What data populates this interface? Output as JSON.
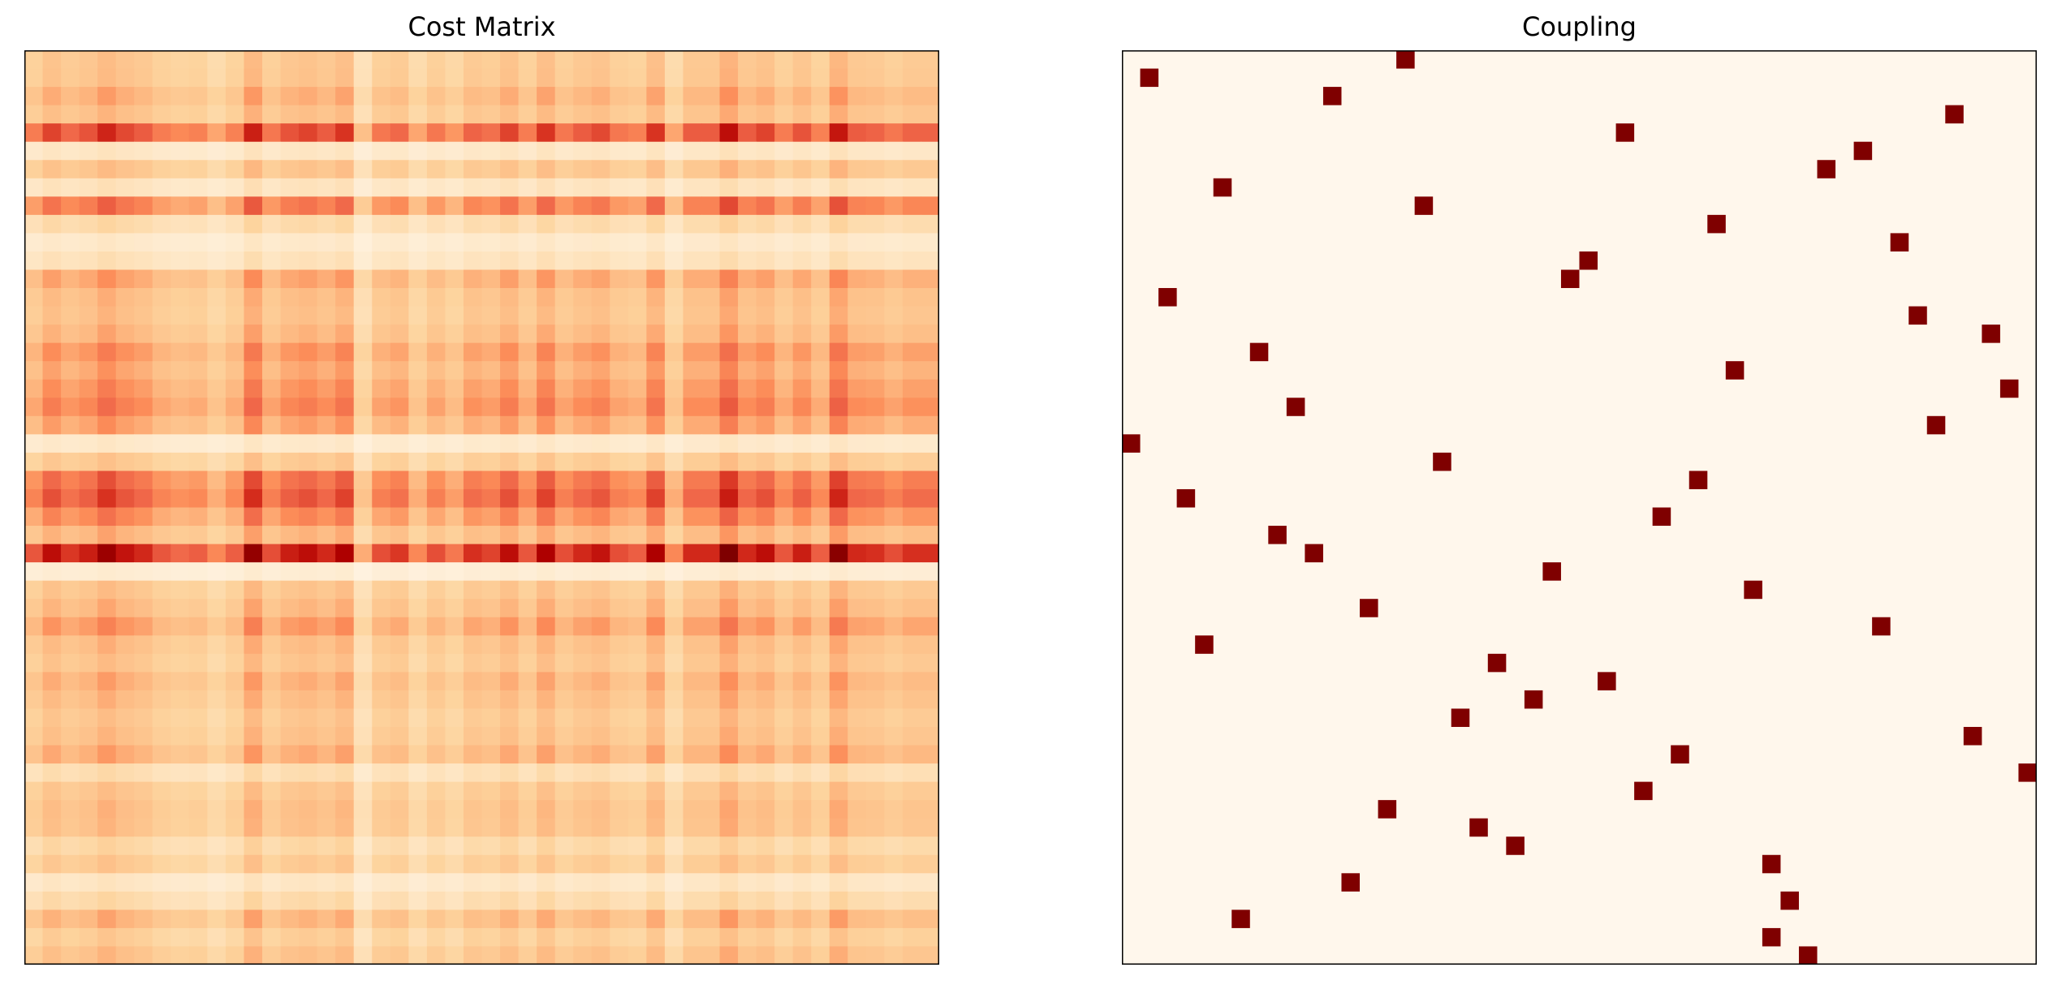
{
  "figure": {
    "panels": [
      {
        "title": "Cost Matrix"
      },
      {
        "title": "Coupling"
      }
    ]
  },
  "chart_data": [
    {
      "type": "heatmap",
      "title": "Cost Matrix",
      "colormap": "OrRd",
      "rows": 50,
      "cols": 50,
      "row_factors": [
        0.32,
        0.33,
        0.42,
        0.35,
        0.78,
        0.12,
        0.33,
        0.14,
        0.62,
        0.2,
        0.1,
        0.15,
        0.46,
        0.37,
        0.35,
        0.4,
        0.52,
        0.45,
        0.52,
        0.58,
        0.47,
        0.1,
        0.3,
        0.66,
        0.74,
        0.56,
        0.4,
        0.96,
        0.07,
        0.33,
        0.39,
        0.5,
        0.37,
        0.33,
        0.42,
        0.37,
        0.32,
        0.35,
        0.43,
        0.18,
        0.32,
        0.36,
        0.35,
        0.22,
        0.3,
        0.12,
        0.2,
        0.4,
        0.28,
        0.35
      ],
      "col_factors": [
        0.6,
        0.8,
        0.68,
        0.75,
        0.9,
        0.78,
        0.72,
        0.6,
        0.55,
        0.58,
        0.45,
        0.58,
        0.92,
        0.62,
        0.75,
        0.8,
        0.72,
        0.85,
        0.35,
        0.62,
        0.68,
        0.45,
        0.62,
        0.5,
        0.7,
        0.65,
        0.8,
        0.6,
        0.85,
        0.62,
        0.72,
        0.78,
        0.62,
        0.58,
        0.85,
        0.45,
        0.72,
        0.72,
        0.98,
        0.72,
        0.8,
        0.6,
        0.75,
        0.58,
        0.95,
        0.72,
        0.7,
        0.62,
        0.7,
        0.7
      ],
      "colors": {
        "low": "#fff7ec",
        "high": "#7f0000"
      }
    },
    {
      "type": "heatmap",
      "title": "Coupling",
      "colormap": "OrRd",
      "rows": 50,
      "cols": 50,
      "nonzero_cells": [
        [
          0,
          15
        ],
        [
          1,
          1
        ],
        [
          2,
          11
        ],
        [
          3,
          45
        ],
        [
          4,
          27
        ],
        [
          5,
          40
        ],
        [
          6,
          38
        ],
        [
          7,
          5
        ],
        [
          8,
          16
        ],
        [
          9,
          32
        ],
        [
          10,
          42
        ],
        [
          11,
          25
        ],
        [
          12,
          24
        ],
        [
          13,
          2
        ],
        [
          14,
          43
        ],
        [
          15,
          47
        ],
        [
          16,
          7
        ],
        [
          17,
          33
        ],
        [
          18,
          48
        ],
        [
          19,
          9
        ],
        [
          20,
          44
        ],
        [
          21,
          0
        ],
        [
          22,
          17
        ],
        [
          23,
          31
        ],
        [
          24,
          3
        ],
        [
          25,
          29
        ],
        [
          26,
          8
        ],
        [
          27,
          10
        ],
        [
          28,
          23
        ],
        [
          29,
          34
        ],
        [
          30,
          13
        ],
        [
          31,
          41
        ],
        [
          32,
          4
        ],
        [
          33,
          20
        ],
        [
          34,
          26
        ],
        [
          35,
          22
        ],
        [
          36,
          18
        ],
        [
          37,
          46
        ],
        [
          38,
          30
        ],
        [
          39,
          49
        ],
        [
          40,
          28
        ],
        [
          41,
          14
        ],
        [
          42,
          19
        ],
        [
          43,
          21
        ],
        [
          44,
          35
        ],
        [
          45,
          12
        ],
        [
          46,
          36
        ],
        [
          47,
          6
        ],
        [
          48,
          35
        ],
        [
          49,
          37
        ]
      ],
      "colors": {
        "background": "#fff7ec",
        "mark": "#7f0000"
      }
    }
  ]
}
